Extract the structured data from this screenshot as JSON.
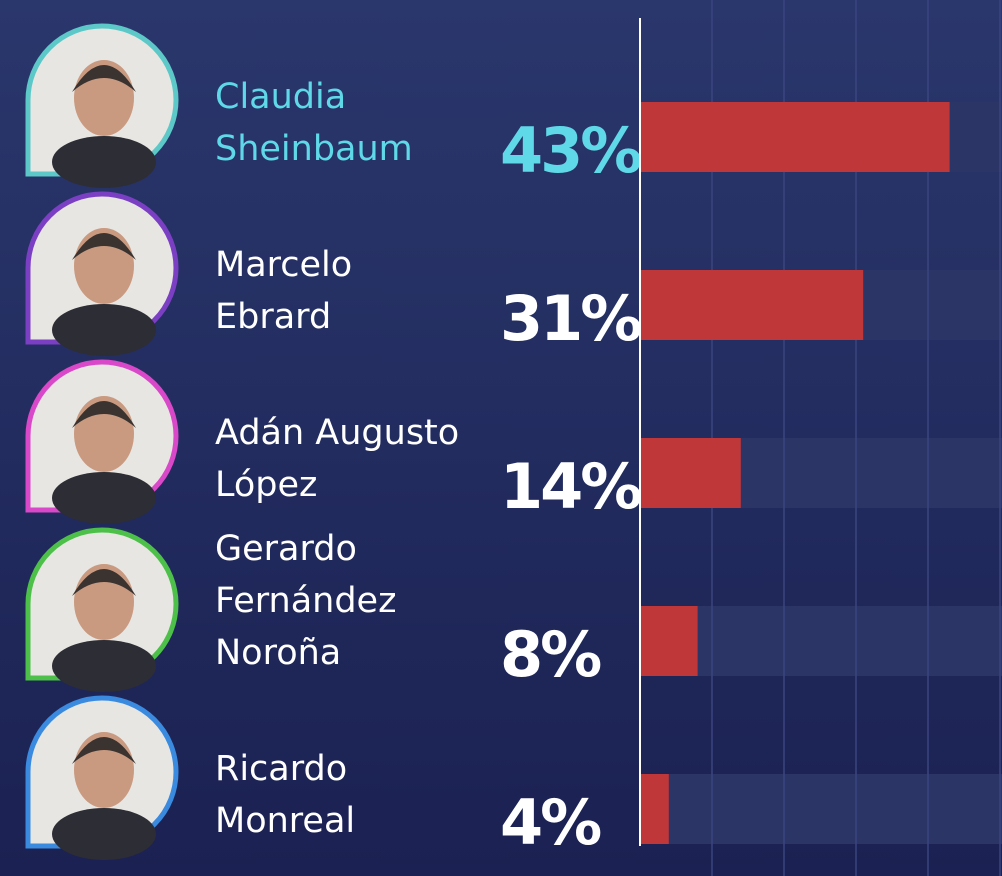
{
  "chart_data": {
    "type": "bar",
    "orientation": "horizontal",
    "categories": [
      [
        "Claudia",
        "Sheinbaum"
      ],
      [
        "Marcelo",
        "Ebrard"
      ],
      [
        "Adán Augusto",
        "López"
      ],
      [
        "Gerardo",
        "Fernández",
        "Noroña"
      ],
      [
        "Ricardo",
        "Monreal"
      ]
    ],
    "values": [
      43,
      31,
      14,
      8,
      4
    ],
    "value_labels": [
      "43%",
      "31%",
      "14%",
      "8%",
      "4%"
    ],
    "color": "#c0373a",
    "label_colors": [
      "#5fd8e8",
      "#ffffff",
      "#ffffff",
      "#ffffff",
      "#ffffff"
    ],
    "xlim": [
      0,
      50
    ],
    "xticks": [
      0,
      10,
      20,
      30,
      40,
      50
    ],
    "grid": true
  }
}
